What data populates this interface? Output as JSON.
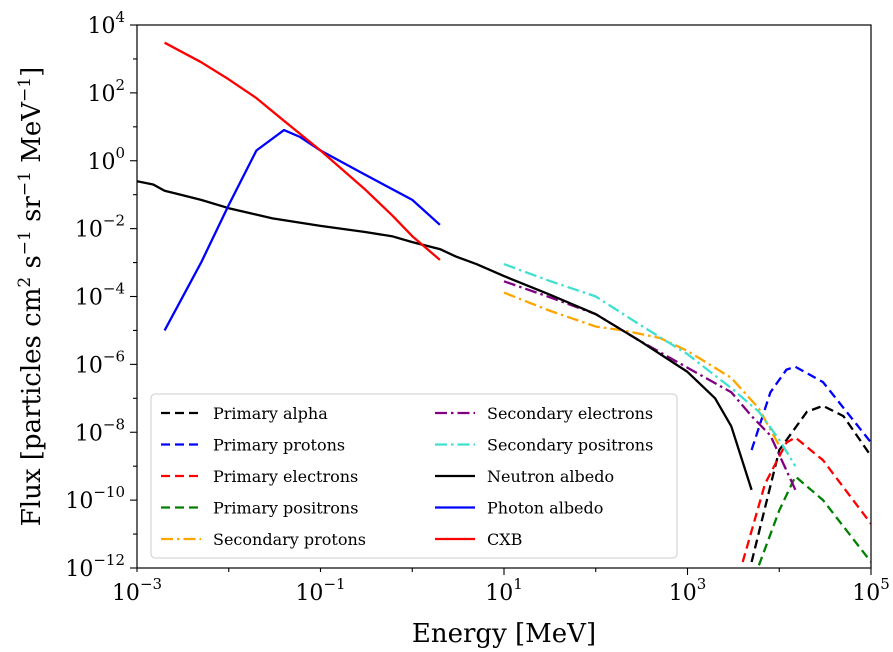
{
  "chart_data": {
    "type": "line",
    "title": "",
    "xlabel": "Energy [MeV]",
    "ylabel_parts": [
      "Flux [particles cm",
      "2",
      " s",
      "−1",
      " sr",
      "−1",
      " MeV",
      "−1",
      "]"
    ],
    "x_scale": "log",
    "y_scale": "log",
    "xlim": [
      0.001,
      100000
    ],
    "ylim": [
      1e-12,
      10000
    ],
    "x_ticks": [
      {
        "base": "10",
        "exp": "−3"
      },
      {
        "base": "10",
        "exp": "−1"
      },
      {
        "base": "10",
        "exp": "1"
      },
      {
        "base": "10",
        "exp": "3"
      },
      {
        "base": "10",
        "exp": "5"
      }
    ],
    "y_ticks": [
      {
        "base": "10",
        "exp": "−12"
      },
      {
        "base": "10",
        "exp": "−10"
      },
      {
        "base": "10",
        "exp": "−8"
      },
      {
        "base": "10",
        "exp": "−6"
      },
      {
        "base": "10",
        "exp": "−4"
      },
      {
        "base": "10",
        "exp": "−2"
      },
      {
        "base": "10",
        "exp": "0"
      },
      {
        "base": "10",
        "exp": "2"
      },
      {
        "base": "10",
        "exp": "4"
      }
    ],
    "grid": false,
    "legend_position": "bottom-left",
    "series": [
      {
        "name": "Primary alpha",
        "color": "#000000",
        "style": "dashed",
        "points": [
          [
            5000,
            1.5e-12
          ],
          [
            10000,
            3e-09
          ],
          [
            20000,
            4e-08
          ],
          [
            30000,
            6e-08
          ],
          [
            50000,
            3e-08
          ],
          [
            100000,
            2e-09
          ]
        ]
      },
      {
        "name": "Primary protons",
        "color": "#0000ff",
        "style": "dashed",
        "points": [
          [
            5000,
            3e-09
          ],
          [
            8000,
            1.5e-07
          ],
          [
            12000,
            7e-07
          ],
          [
            15000,
            8.5e-07
          ],
          [
            30000,
            3e-07
          ],
          [
            100000,
            5e-09
          ]
        ]
      },
      {
        "name": "Primary electrons",
        "color": "#ff0000",
        "style": "dashed",
        "points": [
          [
            4000,
            1.5e-12
          ],
          [
            7000,
            3e-10
          ],
          [
            12000,
            5e-09
          ],
          [
            15000,
            7e-09
          ],
          [
            30000,
            1.5e-09
          ],
          [
            100000,
            2e-11
          ]
        ]
      },
      {
        "name": "Primary positrons",
        "color": "#008000",
        "style": "dashed",
        "points": [
          [
            6000,
            1.2e-12
          ],
          [
            10000,
            5e-11
          ],
          [
            15000,
            5e-10
          ],
          [
            30000,
            1e-10
          ],
          [
            100000,
            1.5e-12
          ]
        ]
      },
      {
        "name": "Secondary protons",
        "color": "#ffa500",
        "style": "dashdot",
        "points": [
          [
            10,
            0.00013
          ],
          [
            30,
            4e-05
          ],
          [
            100,
            1.3e-05
          ],
          [
            200,
            1e-05
          ],
          [
            500,
            6e-06
          ],
          [
            1000,
            2.5e-06
          ],
          [
            3000,
            4e-07
          ],
          [
            6000,
            5e-08
          ],
          [
            10000,
            4e-09
          ]
        ]
      },
      {
        "name": "Secondary electrons",
        "color": "#800080",
        "style": "dashdot",
        "points": [
          [
            10,
            0.00028
          ],
          [
            30,
            0.0001
          ],
          [
            100,
            3e-05
          ],
          [
            300,
            5e-06
          ],
          [
            1000,
            8e-07
          ],
          [
            3000,
            1.5e-07
          ],
          [
            5000,
            3e-08
          ],
          [
            8000,
            8e-09
          ],
          [
            15000,
            2e-10
          ]
        ]
      },
      {
        "name": "Secondary positrons",
        "color": "#40e0d0",
        "style": "dashdot",
        "points": [
          [
            10,
            0.0009
          ],
          [
            30,
            0.0003
          ],
          [
            100,
            0.0001
          ],
          [
            300,
            1.5e-05
          ],
          [
            1000,
            2e-06
          ],
          [
            3000,
            2e-07
          ],
          [
            6000,
            4e-08
          ],
          [
            10000,
            6e-09
          ],
          [
            15000,
            1e-09
          ]
        ]
      },
      {
        "name": "Neutron albedo",
        "color": "#000000",
        "style": "solid",
        "points": [
          [
            0.001,
            0.25
          ],
          [
            0.0015,
            0.2
          ],
          [
            0.002,
            0.13
          ],
          [
            0.003,
            0.1
          ],
          [
            0.005,
            0.07
          ],
          [
            0.01,
            0.04
          ],
          [
            0.03,
            0.02
          ],
          [
            0.1,
            0.012
          ],
          [
            0.3,
            0.008
          ],
          [
            0.6,
            0.006
          ],
          [
            1,
            0.004
          ],
          [
            2,
            0.0025
          ],
          [
            3,
            0.0015
          ],
          [
            5,
            0.0009
          ],
          [
            10,
            0.0004
          ],
          [
            30,
            0.00012
          ],
          [
            100,
            3e-05
          ],
          [
            300,
            5e-06
          ],
          [
            1000,
            6e-07
          ],
          [
            2000,
            1e-07
          ],
          [
            3000,
            1.5e-08
          ],
          [
            5000,
            2e-10
          ]
        ]
      },
      {
        "name": "Photon albedo",
        "color": "#0000ff",
        "style": "solid",
        "points": [
          [
            0.002,
            1e-05
          ],
          [
            0.005,
            0.001
          ],
          [
            0.01,
            0.05
          ],
          [
            0.02,
            2
          ],
          [
            0.04,
            8
          ],
          [
            0.06,
            5
          ],
          [
            0.1,
            2
          ],
          [
            0.3,
            0.4
          ],
          [
            1,
            0.07
          ],
          [
            2,
            0.013
          ]
        ]
      },
      {
        "name": "CXB",
        "color": "#ff0000",
        "style": "solid",
        "points": [
          [
            0.002,
            3000
          ],
          [
            0.005,
            800
          ],
          [
            0.01,
            250
          ],
          [
            0.02,
            70
          ],
          [
            0.04,
            15
          ],
          [
            0.1,
            2
          ],
          [
            0.3,
            0.15
          ],
          [
            0.6,
            0.025
          ],
          [
            1,
            0.006
          ],
          [
            2,
            0.0012
          ]
        ]
      }
    ]
  }
}
